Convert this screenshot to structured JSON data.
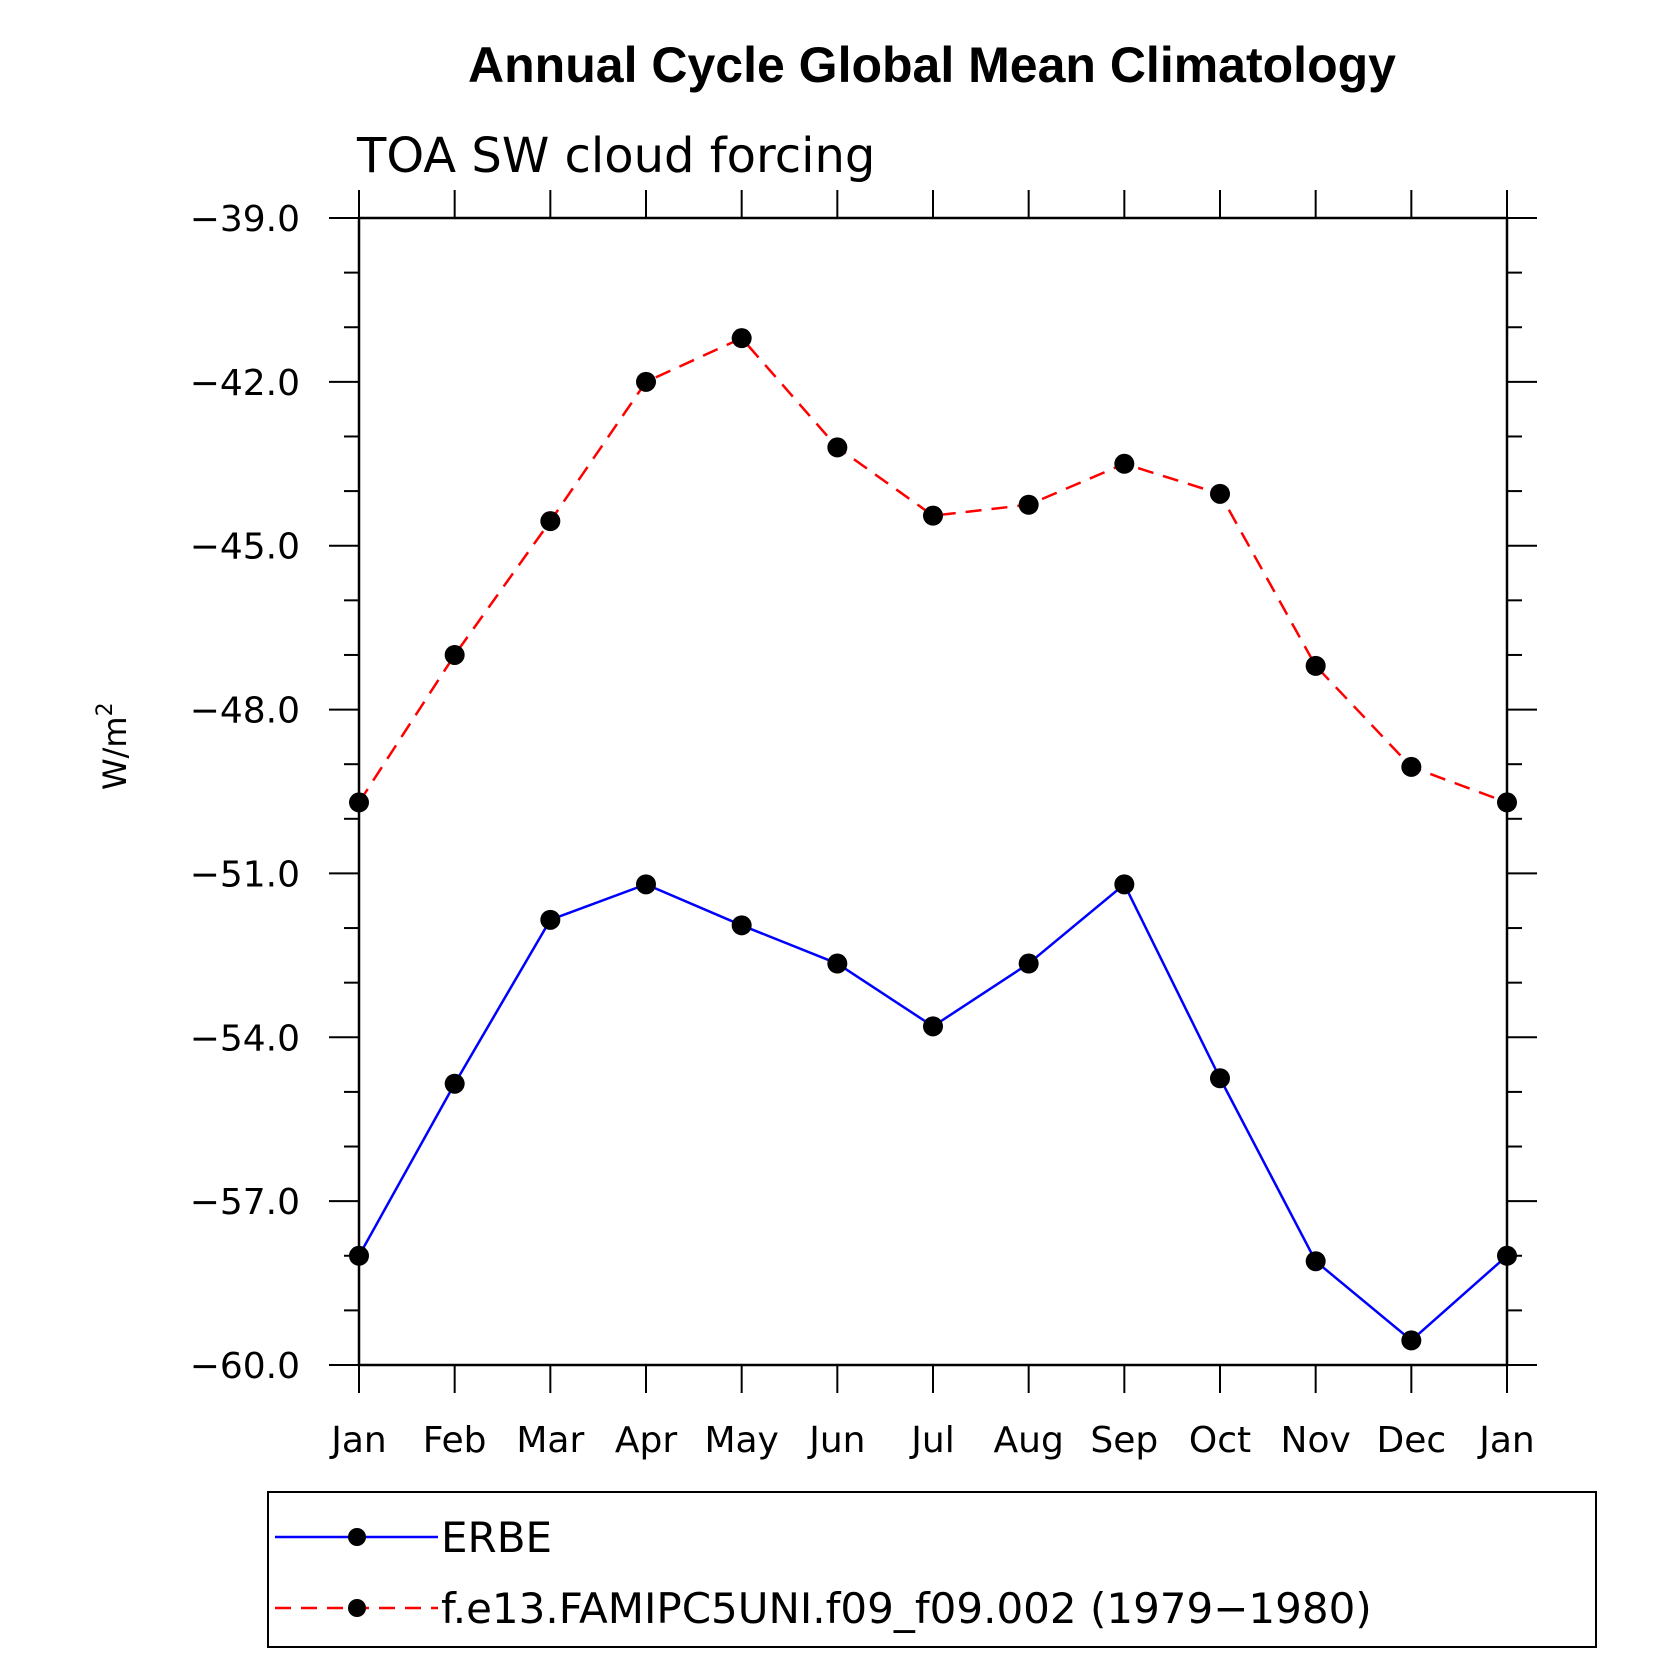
{
  "chart_data": {
    "type": "line",
    "title": "Annual Cycle Global Mean Climatology",
    "subtitle": "TOA SW cloud forcing",
    "ylabel": "W/m",
    "ylabel_superscript": "2",
    "xlabel": "",
    "categories": [
      "Jan",
      "Feb",
      "Mar",
      "Apr",
      "May",
      "Jun",
      "Jul",
      "Aug",
      "Sep",
      "Oct",
      "Nov",
      "Dec",
      "Jan"
    ],
    "ylim": [
      -60.0,
      -39.0
    ],
    "yticks": [
      "-39.0",
      "-42.0",
      "-45.0",
      "-48.0",
      "-51.0",
      "-54.0",
      "-57.0",
      "-60.0"
    ],
    "ytick_values": [
      -39,
      -42,
      -45,
      -48,
      -51,
      -54,
      -57,
      -60
    ],
    "series": [
      {
        "name": "ERBE",
        "color": "#0000ff",
        "dash": "solid",
        "marker": "filled-circle",
        "values": [
          -58.0,
          -54.85,
          -51.85,
          -51.2,
          -51.95,
          -52.65,
          -53.8,
          -52.65,
          -51.2,
          -54.75,
          -58.1,
          -59.55,
          -58.0
        ]
      },
      {
        "name": "f.e13.FAMIPC5UNI.f09_f09.002 (1979−1980)",
        "color": "#ff0000",
        "dash": "dashed",
        "marker": "filled-circle",
        "values": [
          -49.7,
          -47.0,
          -44.55,
          -42.0,
          -41.2,
          -43.2,
          -44.45,
          -44.25,
          -43.5,
          -44.05,
          -47.2,
          -49.05,
          -49.7
        ]
      }
    ],
    "legend_position": "bottom",
    "grid": false
  }
}
